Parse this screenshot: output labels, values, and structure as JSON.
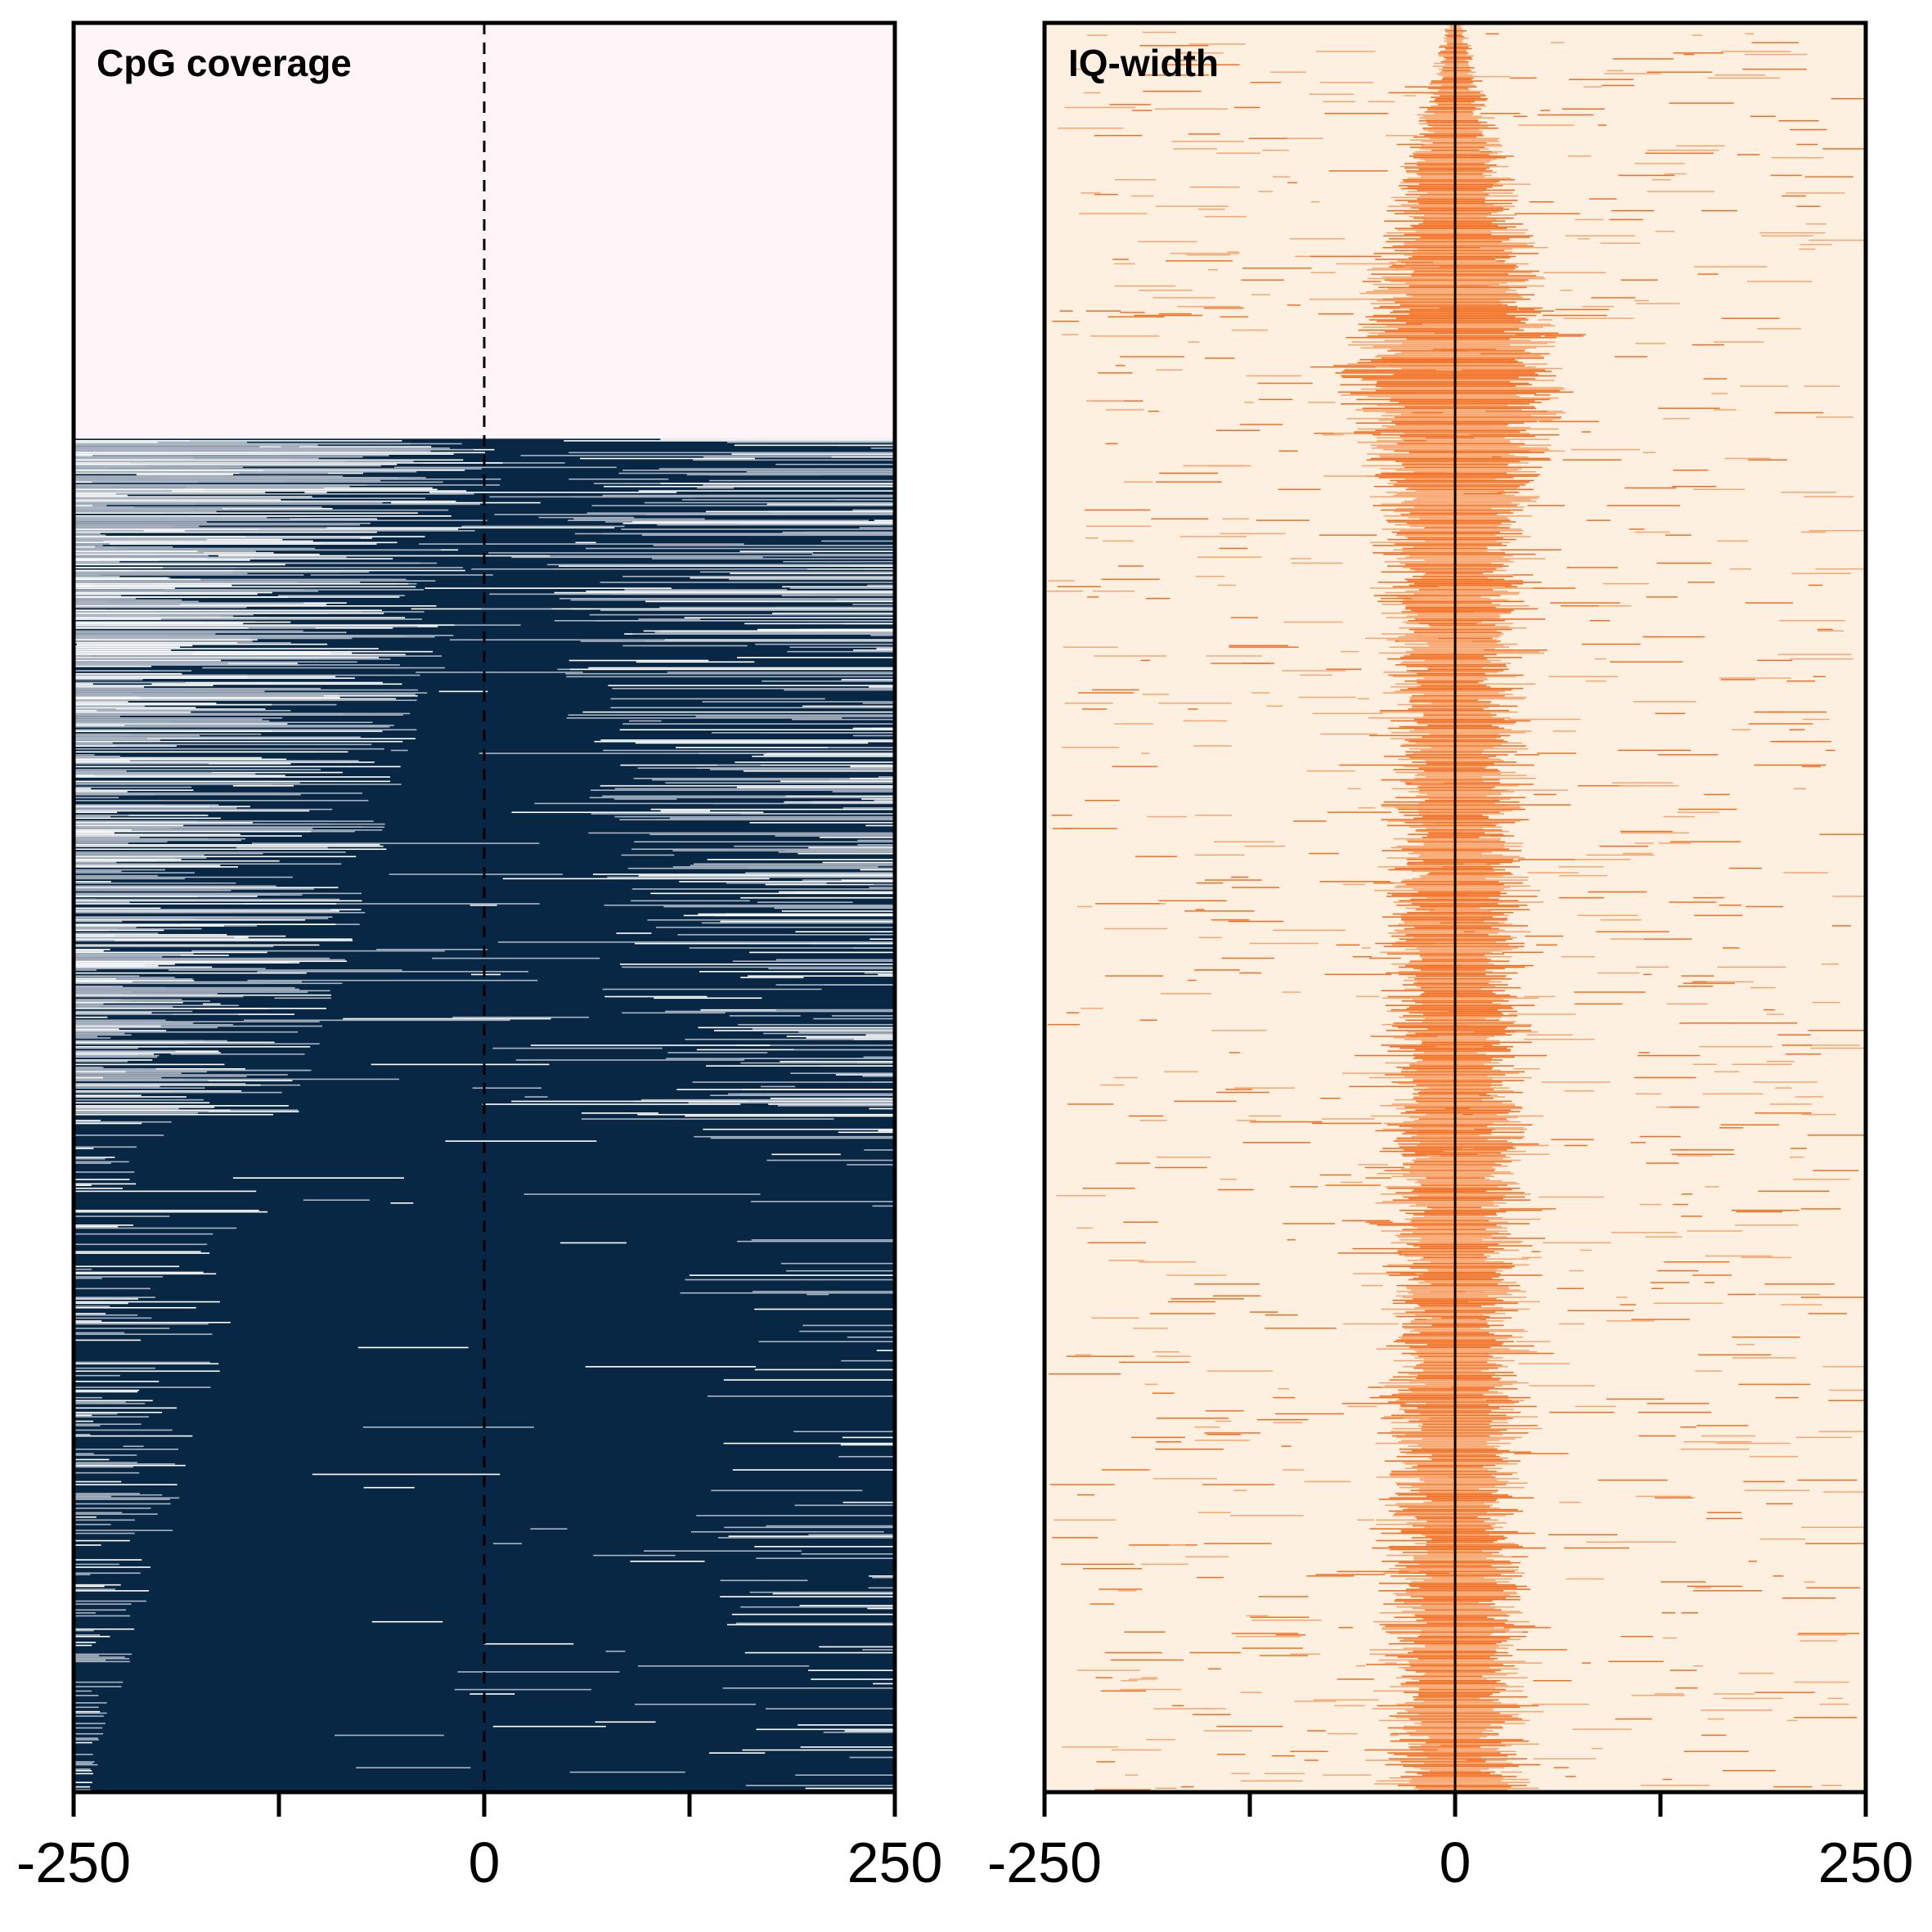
{
  "chart_data": [
    {
      "type": "heatmap",
      "title": "CpG coverage",
      "x_ticks": [
        -250,
        0,
        250
      ],
      "x_minor_ticks": [
        -250,
        -125,
        0,
        125,
        250
      ],
      "xlim": [
        -250,
        250
      ],
      "center_line": 0,
      "center_line_style": "dashed",
      "rows": 1200,
      "row_order": "sorted by coverage (top rows empty, increasing density downward)",
      "empty_fraction_top": 0.235,
      "colors": {
        "background": "#fff4f8",
        "high": "#082744",
        "mid": "#a9b3c1",
        "low": "#ffffff"
      }
    },
    {
      "type": "heatmap",
      "title": "IQ-width",
      "x_ticks": [
        -250,
        0,
        250
      ],
      "x_minor_ticks": [
        -250,
        -125,
        0,
        125,
        250
      ],
      "xlim": [
        -250,
        250
      ],
      "center_line": 0,
      "center_line_style": "solid",
      "rows": 1200,
      "row_order": "sorted by peak width (narrow at top, widening then stable)",
      "colors": {
        "background": "#fdf0e1",
        "high": "#f26b1d",
        "mid": "#f8a36b"
      }
    }
  ]
}
